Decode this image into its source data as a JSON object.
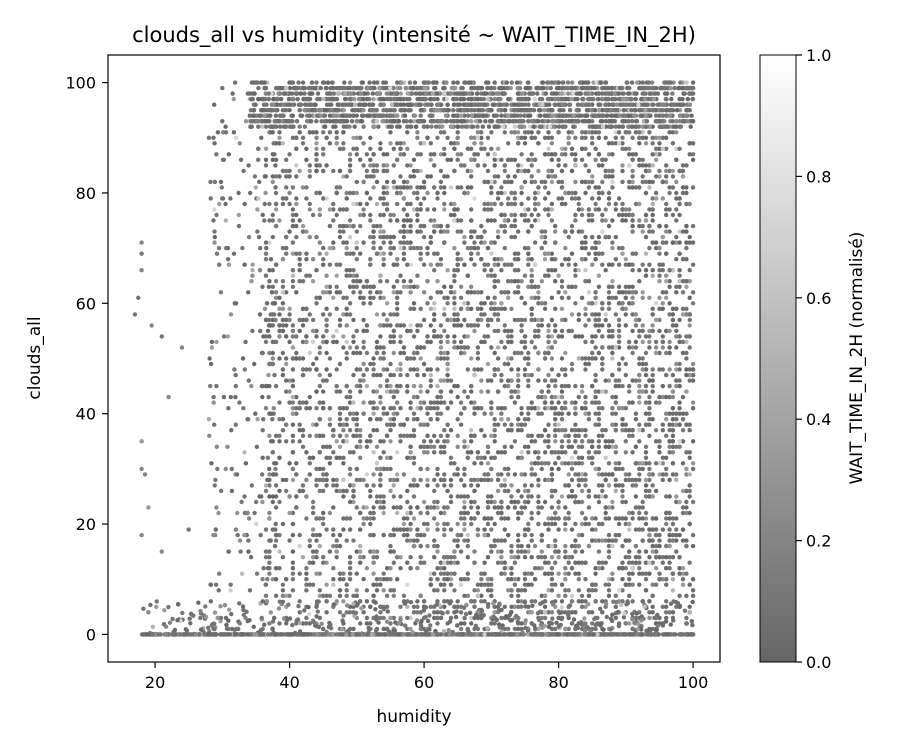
{
  "chart_data": {
    "type": "scatter",
    "title": "clouds_all vs humidity (intensité ~ WAIT_TIME_IN_2H)",
    "xlabel": "humidity",
    "ylabel": "clouds_all",
    "xlim": [
      13,
      104
    ],
    "ylim": [
      -5,
      105
    ],
    "xticks": [
      20,
      40,
      60,
      80,
      100
    ],
    "yticks": [
      0,
      20,
      40,
      60,
      80,
      100
    ],
    "grid": false,
    "marker_size": "small",
    "colormap": "gray (alpha-blended on white)",
    "colorbar": {
      "label": "WAIT_TIME_IN_2H (normalisé)",
      "range": [
        0.0,
        1.0
      ],
      "ticks": [
        "0.0",
        "0.2",
        "0.4",
        "0.6",
        "0.8",
        "1.0"
      ],
      "color_low": "#666666",
      "color_high": "#ffffff"
    },
    "points_sample": [
      {
        "x": 17,
        "y": 58,
        "c": 0.1
      },
      {
        "x": 17.5,
        "y": 61,
        "c": 0.1
      },
      {
        "x": 18,
        "y": 66,
        "c": 0.2
      },
      {
        "x": 18,
        "y": 69,
        "c": 0.1
      },
      {
        "x": 18,
        "y": 71,
        "c": 0.2
      },
      {
        "x": 18,
        "y": 35,
        "c": 0.3
      },
      {
        "x": 18,
        "y": 30,
        "c": 0.2
      },
      {
        "x": 18,
        "y": 18,
        "c": 0.2
      },
      {
        "x": 18.5,
        "y": 29,
        "c": 0.2
      },
      {
        "x": 19,
        "y": 23,
        "c": 0.3
      },
      {
        "x": 19,
        "y": 4,
        "c": 0.2
      },
      {
        "x": 19.5,
        "y": 56,
        "c": 0.2
      },
      {
        "x": 21,
        "y": 54,
        "c": 0.1
      },
      {
        "x": 22,
        "y": 43,
        "c": 0.2
      },
      {
        "x": 24,
        "y": 52,
        "c": 0.2
      },
      {
        "x": 21,
        "y": 15,
        "c": 0.2
      },
      {
        "x": 25,
        "y": 19,
        "c": 0.1
      },
      {
        "x": 28,
        "y": 90,
        "c": 0.1
      },
      {
        "x": 30,
        "y": 99,
        "c": 0.1
      },
      {
        "x": 32,
        "y": 45,
        "c": 0.1
      },
      {
        "x": 35,
        "y": 100,
        "c": 0.05
      },
      {
        "x": 45,
        "y": 100,
        "c": 0.05
      },
      {
        "x": 60,
        "y": 100,
        "c": 0.05
      },
      {
        "x": 80,
        "y": 100,
        "c": 0.05
      },
      {
        "x": 100,
        "y": 100,
        "c": 0.05
      },
      {
        "x": 30,
        "y": 0,
        "c": 0.05
      },
      {
        "x": 50,
        "y": 0,
        "c": 0.05
      },
      {
        "x": 70,
        "y": 0,
        "c": 0.05
      },
      {
        "x": 90,
        "y": 0,
        "c": 0.05
      },
      {
        "x": 100,
        "y": 0,
        "c": 0.05
      }
    ]
  }
}
